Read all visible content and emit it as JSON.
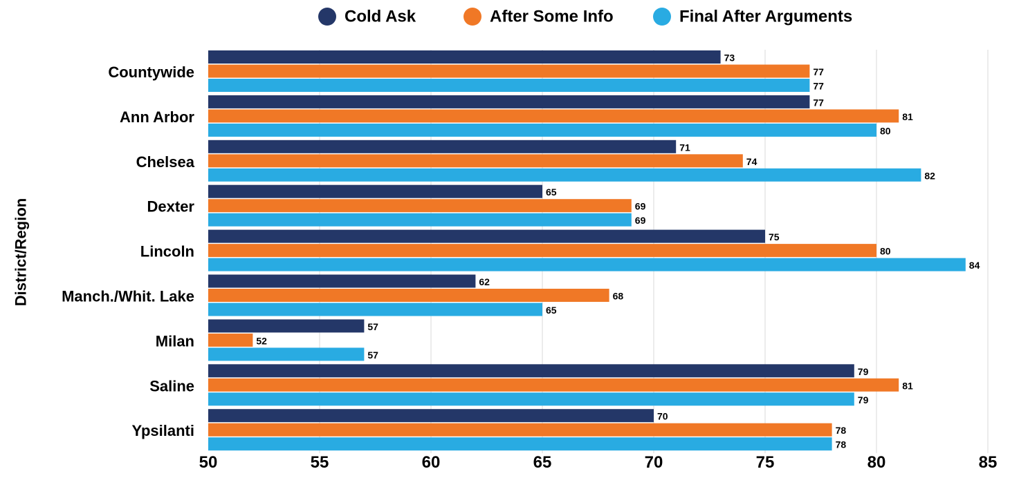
{
  "chart_data": {
    "type": "bar",
    "orientation": "horizontal",
    "ylabel": "District/Region",
    "xlabel": "",
    "xlim": [
      50,
      85
    ],
    "xticks": [
      50,
      55,
      60,
      65,
      70,
      75,
      80,
      85
    ],
    "grid": true,
    "legend_position": "top",
    "data_labels": true,
    "categories": [
      "Countywide",
      "Ann Arbor",
      "Chelsea",
      "Dexter",
      "Lincoln",
      "Manch./Whit. Lake",
      "Milan",
      "Saline",
      "Ypsilanti"
    ],
    "series": [
      {
        "name": "Cold Ask",
        "color": "#243768",
        "values": [
          73,
          77,
          71,
          65,
          75,
          62,
          57,
          79,
          70
        ]
      },
      {
        "name": "After Some Info",
        "color": "#f07826",
        "values": [
          77,
          81,
          74,
          69,
          80,
          68,
          52,
          81,
          78
        ]
      },
      {
        "name": "Final After Arguments",
        "color": "#29abe2",
        "values": [
          77,
          80,
          82,
          69,
          84,
          65,
          57,
          79,
          78
        ]
      }
    ]
  }
}
